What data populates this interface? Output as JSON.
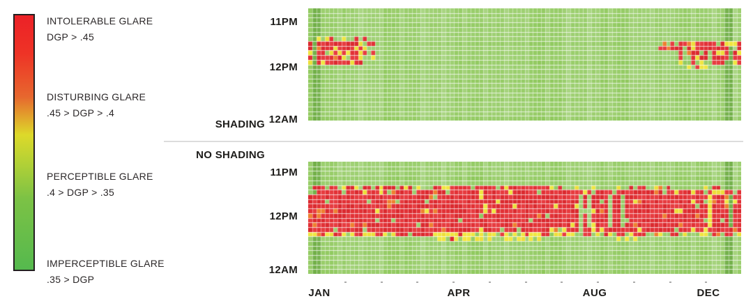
{
  "colors": {
    "cell_green_base": "#8ec85b",
    "cell_green_dark": "#6fae44",
    "cell_reds": [
      "#e23136",
      "#e73c40",
      "#db2a2f"
    ],
    "cell_yellows": [
      "#f0e641",
      "#ecdf3a"
    ],
    "cell_orange": "#ee8030",
    "divider_gray": "#dcdcdc",
    "text_dark": "#1d1c1a"
  },
  "legend": {
    "entries": [
      {
        "label": "INTOLERABLE GLARE",
        "range": "DGP > .45"
      },
      {
        "label": "DISTURBING GLARE",
        "range": ".45 > DGP > .4"
      },
      {
        "label": "PERCEPTIBLE GLARE",
        "range": ".4 > DGP > .35"
      },
      {
        "label": "IMPERCEPTIBLE GLARE",
        "range": ".35 > DGP"
      }
    ],
    "colorbar_gradient_top_to_bottom": [
      "#ec2127",
      "#ee3326",
      "#e7672e",
      "#ddd92a",
      "#b3d136",
      "#7cc245",
      "#55b94e"
    ]
  },
  "chart_data": [
    {
      "type": "heatmap",
      "name": "SHADING",
      "x_axis": "Day of year, JAN through DEC",
      "y_axis": "Hour of day, 12AM (bottom) to 11PM (top)",
      "value": "DGP glare category (green=imperceptible, yellow=perceptible, red=intolerable/disturbing)",
      "x_ticks": [
        "JAN",
        "APR",
        "AUG",
        "DEC"
      ],
      "y_ticks": [
        "11PM",
        "12PM",
        "12AM"
      ],
      "rows": 24,
      "cols": 104,
      "seed": 7,
      "dark_columns": [
        1,
        2,
        100,
        101
      ],
      "bands": [
        {
          "rows": [
            6,
            6
          ],
          "cols": [
            2,
            13
          ],
          "red": 0.28,
          "yellow": 0.22
        },
        {
          "rows": [
            7,
            11
          ],
          "cols": [
            0,
            12
          ],
          "red": 0.8,
          "yellow": 0.1,
          "gap_green": 0.03,
          "gap_yellow": 0.03
        },
        {
          "rows": [
            7,
            10
          ],
          "cols": [
            12,
            15
          ],
          "red": 0.3,
          "yellow": 0.18
        },
        {
          "rows": [
            7,
            8
          ],
          "cols": [
            84,
            103
          ],
          "red": 0.62,
          "yellow": 0.1
        },
        {
          "rows": [
            9,
            11
          ],
          "cols": [
            88,
            103
          ],
          "red": 0.75,
          "yellow": 0.07,
          "gap_green": 0.04
        },
        {
          "rows": [
            12,
            12
          ],
          "cols": [
            86,
            96
          ],
          "red": 0.06,
          "yellow": 0.15
        }
      ],
      "summary": "Glare nearly eliminated: only brief midday intolerable-glare clusters in early January and November–December; rest of year imperceptible."
    },
    {
      "type": "heatmap",
      "name": "NO SHADING",
      "x_axis": "Day of year, JAN through DEC",
      "y_axis": "Hour of day, 12AM (bottom) to 11PM (top)",
      "value": "DGP glare category (green=imperceptible, yellow=perceptible, red=intolerable/disturbing)",
      "x_ticks": [
        "JAN",
        "APR",
        "AUG",
        "DEC"
      ],
      "y_ticks": [
        "11PM",
        "12PM",
        "12AM"
      ],
      "rows": 24,
      "cols": 104,
      "seed": 13,
      "dark_columns": [
        1,
        2,
        100,
        101
      ],
      "bands": [
        {
          "rows": [
            5,
            5
          ],
          "cols": [
            1,
            58
          ],
          "red": 0.5,
          "yellow": 0.2
        },
        {
          "rows": [
            5,
            5
          ],
          "cols": [
            59,
            84
          ],
          "red": 0.22,
          "yellow": 0.16
        },
        {
          "rows": [
            5,
            5
          ],
          "cols": [
            85,
            103
          ],
          "red": 0.12,
          "yellow": 0.1
        },
        {
          "rows": [
            6,
            6
          ],
          "cols": [
            2,
            94
          ],
          "red": 0.85,
          "yellow": 0.08
        },
        {
          "rows": [
            6,
            6
          ],
          "cols": [
            95,
            103
          ],
          "red": 0.45,
          "yellow": 0.25
        },
        {
          "rows": [
            7,
            13
          ],
          "cols": [
            0,
            103
          ],
          "red": 0.94,
          "yellow": 0.03,
          "gap_green": 0.025,
          "gap_yellow": 0.02
        },
        {
          "rows": [
            14,
            14
          ],
          "cols": [
            0,
            103
          ],
          "red": 0.82,
          "yellow": 0.12
        },
        {
          "rows": [
            15,
            15
          ],
          "cols": [
            0,
            29
          ],
          "red": 0.55,
          "yellow": 0.33
        },
        {
          "rows": [
            15,
            15
          ],
          "cols": [
            30,
            63
          ],
          "red": 0.3,
          "yellow": 0.55
        },
        {
          "rows": [
            15,
            15
          ],
          "cols": [
            64,
            103
          ],
          "red": 0.45,
          "yellow": 0.3
        },
        {
          "rows": [
            16,
            16
          ],
          "cols": [
            30,
            63
          ],
          "red": 0.05,
          "yellow": 0.5
        },
        {
          "rows": [
            16,
            16
          ],
          "cols": [
            64,
            78
          ],
          "red": 0.03,
          "yellow": 0.2
        }
      ],
      "summary": "Intolerable glare (DGP > .45) for a wide midday band (~9AM–3PM) across the entire year, fringed by perceptible-glare yellow, widest in spring–summer."
    }
  ]
}
